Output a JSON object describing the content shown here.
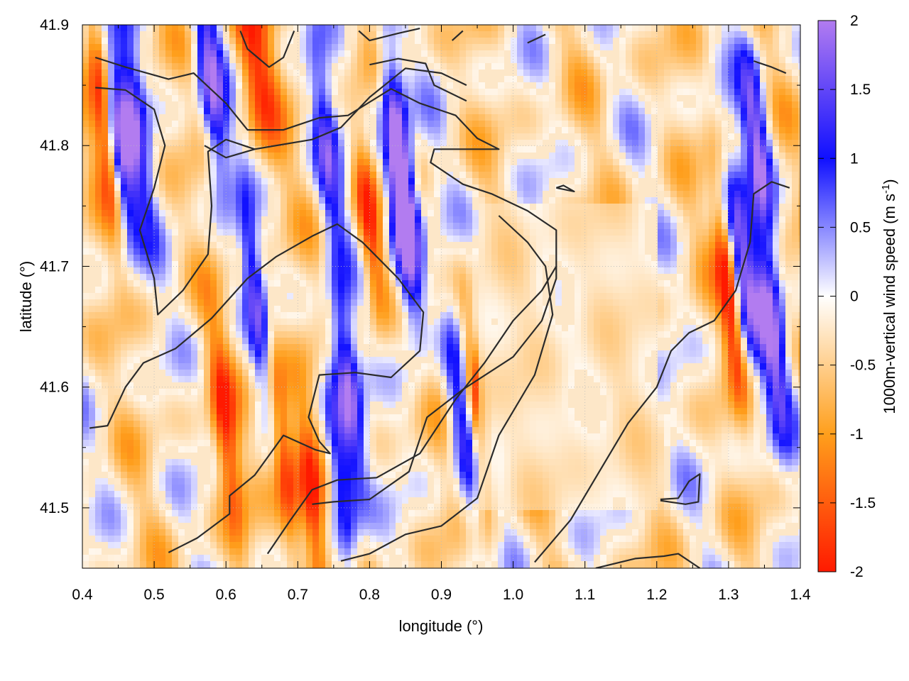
{
  "chart_data": {
    "type": "heatmap",
    "title": "",
    "xlabel": "longitude (°)",
    "ylabel": "latitude (°)",
    "xlim": [
      0.4,
      1.4
    ],
    "ylim": [
      41.45,
      41.9
    ],
    "x_ticks": [
      "0.4",
      "0.5",
      "0.6",
      "0.7",
      "0.8",
      "0.9",
      "1.0",
      "1.1",
      "1.2",
      "1.3",
      "1.4"
    ],
    "y_ticks": [
      "41.5",
      "41.6",
      "41.7",
      "41.8",
      "41.9"
    ],
    "colorbar": {
      "label": "1000m-vertical wind speed (m s",
      "label_superscript": "-1",
      "label_close": ")",
      "range": [
        -2,
        2
      ],
      "ticks": [
        "2",
        "1.5",
        "1",
        "0.5",
        "0",
        "-0.5",
        "-1",
        "-1.5",
        "-2"
      ],
      "colors": {
        "-2": "#ff1a00",
        "-1": "#ff9f1c",
        "0": "#ffffff",
        "1": "#1010ff",
        "2": "#b27cf0"
      }
    },
    "grid": true,
    "contours": [
      {
        "name": "c1",
        "points": [
          [
            0.418,
            41.873
          ],
          [
            0.46,
            41.865
          ],
          [
            0.52,
            41.855
          ],
          [
            0.555,
            41.86
          ],
          [
            0.6,
            41.835
          ],
          [
            0.63,
            41.813
          ],
          [
            0.68,
            41.813
          ],
          [
            0.73,
            41.823
          ],
          [
            0.77,
            41.825
          ],
          [
            0.83,
            41.847
          ],
          [
            0.87,
            41.835
          ],
          [
            0.92,
            41.825
          ],
          [
            0.95,
            41.806
          ],
          [
            0.98,
            41.797
          ],
          [
            0.94,
            41.797
          ],
          [
            0.89,
            41.797
          ],
          [
            0.885,
            41.786
          ],
          [
            0.93,
            41.768
          ],
          [
            0.97,
            41.76
          ],
          [
            1.02,
            41.746
          ],
          [
            1.06,
            41.73
          ],
          [
            1.06,
            41.69
          ],
          [
            1.04,
            41.655
          ],
          [
            1.0,
            41.625
          ],
          [
            0.93,
            41.598
          ],
          [
            0.88,
            41.575
          ],
          [
            0.855,
            41.53
          ],
          [
            0.8,
            41.507
          ],
          [
            0.75,
            41.505
          ],
          [
            0.72,
            41.503
          ]
        ]
      },
      {
        "name": "c2",
        "points": [
          [
            0.418,
            41.848
          ],
          [
            0.46,
            41.846
          ],
          [
            0.5,
            41.83
          ],
          [
            0.515,
            41.8
          ],
          [
            0.5,
            41.765
          ],
          [
            0.48,
            41.73
          ],
          [
            0.5,
            41.69
          ],
          [
            0.505,
            41.66
          ],
          [
            0.54,
            41.68
          ],
          [
            0.575,
            41.71
          ],
          [
            0.58,
            41.75
          ],
          [
            0.575,
            41.795
          ],
          [
            0.6,
            41.805
          ],
          [
            0.64,
            41.797
          ],
          [
            0.72,
            41.805
          ],
          [
            0.76,
            41.815
          ],
          [
            0.8,
            41.84
          ],
          [
            0.85,
            41.864
          ],
          [
            0.9,
            41.86
          ],
          [
            0.935,
            41.85
          ]
        ]
      },
      {
        "name": "c3",
        "points": [
          [
            0.41,
            41.566
          ],
          [
            0.435,
            41.568
          ],
          [
            0.46,
            41.6
          ],
          [
            0.485,
            41.62
          ],
          [
            0.53,
            41.632
          ],
          [
            0.58,
            41.657
          ],
          [
            0.63,
            41.69
          ],
          [
            0.67,
            41.708
          ],
          [
            0.72,
            41.725
          ],
          [
            0.755,
            41.735
          ],
          [
            0.79,
            41.72
          ],
          [
            0.84,
            41.69
          ],
          [
            0.875,
            41.662
          ],
          [
            0.87,
            41.63
          ],
          [
            0.83,
            41.608
          ],
          [
            0.78,
            41.612
          ],
          [
            0.73,
            41.61
          ],
          [
            0.715,
            41.575
          ],
          [
            0.73,
            41.555
          ],
          [
            0.745,
            41.545
          ],
          [
            0.725,
            41.548
          ],
          [
            0.68,
            41.56
          ],
          [
            0.64,
            41.527
          ],
          [
            0.605,
            41.51
          ],
          [
            0.605,
            41.495
          ],
          [
            0.56,
            41.475
          ],
          [
            0.52,
            41.463
          ]
        ]
      },
      {
        "name": "c4",
        "points": [
          [
            0.76,
            41.456
          ],
          [
            0.8,
            41.462
          ],
          [
            0.85,
            41.478
          ],
          [
            0.9,
            41.485
          ],
          [
            0.95,
            41.508
          ],
          [
            0.98,
            41.56
          ],
          [
            1.03,
            41.61
          ],
          [
            1.055,
            41.66
          ],
          [
            1.045,
            41.7
          ],
          [
            1.02,
            41.72
          ],
          [
            0.98,
            41.742
          ]
        ]
      },
      {
        "name": "c5",
        "points": [
          [
            1.03,
            41.455
          ],
          [
            1.08,
            41.49
          ],
          [
            1.12,
            41.53
          ],
          [
            1.16,
            41.57
          ],
          [
            1.2,
            41.6
          ],
          [
            1.22,
            41.63
          ],
          [
            1.245,
            41.645
          ],
          [
            1.28,
            41.655
          ],
          [
            1.31,
            41.68
          ],
          [
            1.33,
            41.72
          ],
          [
            1.335,
            41.76
          ],
          [
            1.36,
            41.77
          ],
          [
            1.385,
            41.765
          ]
        ]
      },
      {
        "name": "c6",
        "points": [
          [
            1.115,
            41.45
          ],
          [
            1.17,
            41.458
          ],
          [
            1.21,
            41.46
          ],
          [
            1.23,
            41.462
          ],
          [
            1.26,
            41.45
          ]
        ]
      },
      {
        "name": "c7",
        "points": [
          [
            1.205,
            41.506
          ],
          [
            1.24,
            41.503
          ],
          [
            1.258,
            41.505
          ],
          [
            1.26,
            41.528
          ],
          [
            1.245,
            41.522
          ],
          [
            1.23,
            41.508
          ],
          [
            1.205,
            41.507
          ]
        ]
      },
      {
        "name": "c8",
        "points": [
          [
            0.658,
            41.462
          ],
          [
            0.69,
            41.49
          ],
          [
            0.72,
            41.515
          ],
          [
            0.755,
            41.523
          ],
          [
            0.81,
            41.525
          ],
          [
            0.87,
            41.545
          ],
          [
            0.92,
            41.59
          ],
          [
            0.96,
            41.62
          ],
          [
            1.0,
            41.655
          ],
          [
            1.04,
            41.68
          ],
          [
            1.06,
            41.7
          ]
        ]
      },
      {
        "name": "c9",
        "points": [
          [
            0.8,
            41.867
          ],
          [
            0.84,
            41.872
          ],
          [
            0.878,
            41.868
          ],
          [
            0.89,
            41.85
          ],
          [
            0.935,
            41.837
          ]
        ]
      },
      {
        "name": "c10",
        "points": [
          [
            0.57,
            41.8
          ],
          [
            0.6,
            41.79
          ],
          [
            0.64,
            41.797
          ]
        ]
      },
      {
        "name": "c11",
        "points": [
          [
            1.06,
            41.765
          ],
          [
            1.085,
            41.762
          ],
          [
            1.07,
            41.767
          ],
          [
            1.06,
            41.765
          ]
        ]
      },
      {
        "name": "c12",
        "points": [
          [
            1.335,
            41.87
          ],
          [
            1.36,
            41.865
          ],
          [
            1.38,
            41.86
          ]
        ]
      },
      {
        "name": "c13",
        "points": [
          [
            0.785,
            41.895
          ],
          [
            0.8,
            41.887
          ],
          [
            0.84,
            41.893
          ],
          [
            0.87,
            41.897
          ]
        ]
      },
      {
        "name": "c14",
        "points": [
          [
            0.93,
            41.895
          ],
          [
            0.915,
            41.887
          ]
        ]
      },
      {
        "name": "c15",
        "points": [
          [
            1.02,
            41.885
          ],
          [
            1.045,
            41.892
          ]
        ]
      },
      {
        "name": "c16",
        "points": [
          [
            0.62,
            41.895
          ],
          [
            0.63,
            41.88
          ],
          [
            0.66,
            41.865
          ],
          [
            0.68,
            41.873
          ],
          [
            0.695,
            41.895
          ]
        ]
      }
    ]
  }
}
